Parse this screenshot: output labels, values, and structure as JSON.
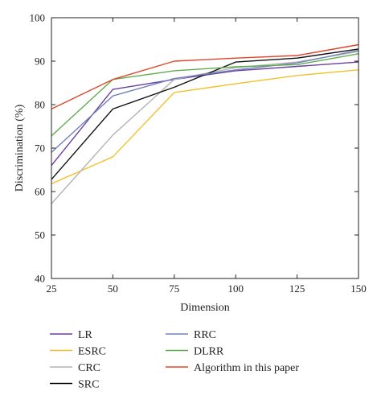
{
  "chart_data": {
    "type": "line",
    "xlabel": "Dimension",
    "ylabel": "Discrimination (%)",
    "x": [
      25,
      50,
      75,
      100,
      125,
      150
    ],
    "xlim": [
      25,
      150
    ],
    "ylim": [
      40,
      100
    ],
    "xticks": [
      25,
      50,
      75,
      100,
      125,
      150
    ],
    "yticks": [
      40,
      50,
      60,
      70,
      80,
      90,
      100
    ],
    "grid": false,
    "legend_position": "bottom",
    "series": [
      {
        "name": "LR",
        "color": "#6b3fa0",
        "values": [
          66,
          83.5,
          85.8,
          87.8,
          88.8,
          89.8
        ]
      },
      {
        "name": "ESRC",
        "color": "#f2c12e",
        "values": [
          61.8,
          68,
          82.8,
          84.8,
          86.7,
          88
        ]
      },
      {
        "name": "CRC",
        "color": "#b4b4b4",
        "values": [
          57.2,
          73,
          85.8,
          88.5,
          89.8,
          92.2
        ]
      },
      {
        "name": "SRC",
        "color": "#111111",
        "values": [
          62.8,
          79,
          84,
          89.8,
          90.7,
          92.8
        ]
      },
      {
        "name": "RRC",
        "color": "#7182b8",
        "values": [
          69,
          82,
          86,
          88,
          89.6,
          92.5
        ]
      },
      {
        "name": "DLRR",
        "color": "#5fad4e",
        "values": [
          72.8,
          85.8,
          87.8,
          88.7,
          89.2,
          91.7
        ]
      },
      {
        "name": "Algorithm in this paper",
        "color": "#e0452b",
        "values": [
          79,
          85.8,
          90,
          90.7,
          91.3,
          93.8
        ]
      }
    ]
  }
}
